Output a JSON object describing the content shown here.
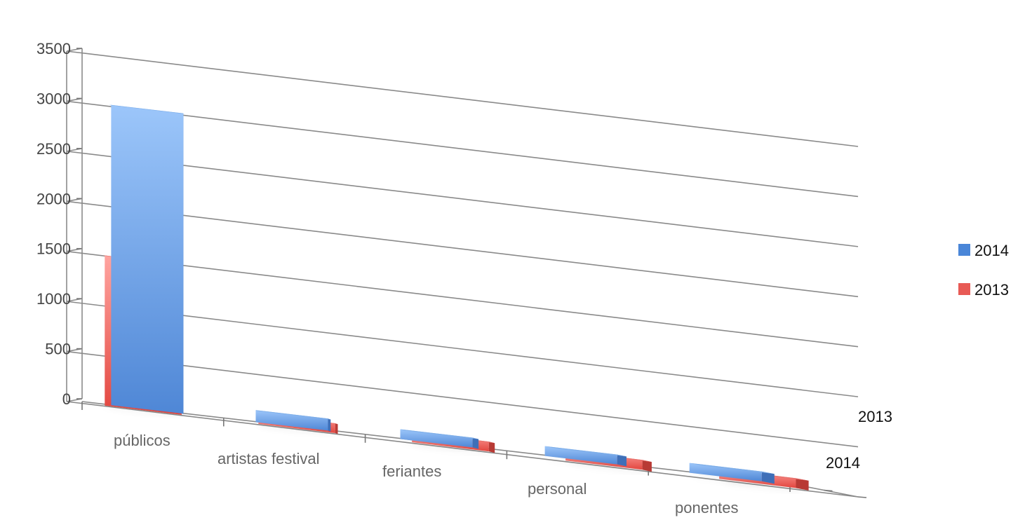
{
  "chart_data": {
    "type": "bar",
    "subtype": "3d-column",
    "title": "",
    "xlabel": "",
    "ylabel": "",
    "ylim": [
      0,
      3500
    ],
    "yticks": [
      0,
      500,
      1000,
      1500,
      2000,
      2500,
      3000,
      3500
    ],
    "grid": true,
    "legend_position": "right",
    "categories": [
      "públicos",
      "artistas festival",
      "feriantes",
      "personal",
      "ponentes"
    ],
    "series": [
      {
        "name": "2014",
        "color": "#4a86d8",
        "values": [
          3000,
          120,
          50,
          50,
          40
        ]
      },
      {
        "name": "2013",
        "color": "#e85a55",
        "values": [
          1500,
          60,
          30,
          30,
          30
        ]
      }
    ],
    "depth_labels": [
      "2013",
      "2014"
    ]
  }
}
